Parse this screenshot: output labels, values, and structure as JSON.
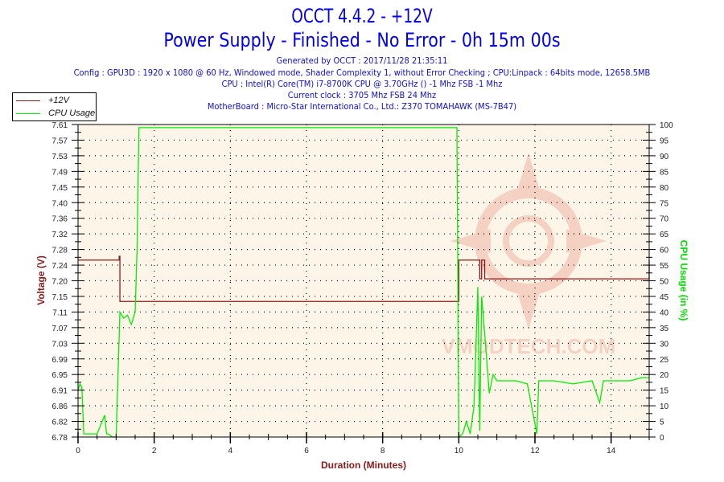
{
  "header": {
    "title": "OCCT 4.4.2 - +12V",
    "subtitle": "Power Supply - Finished - No Error - 0h 15m 00s",
    "generated": "Generated by OCCT : 2017/11/28 21:35:11",
    "config": "Config : GPU3D : 1920 x 1080 @ 60 Hz, Windowed mode, Shader Complexity 1, without Error Checking ; CPU:Linpack : 64bits mode, 12658.5MB",
    "cpu": "CPU : Intel(R) Core(TM) i7-8700K CPU @ 3.70GHz () -1 Mhz FSB -1 Mhz",
    "clock": "Current clock : 3705 Mhz FSB 24 Mhz",
    "motherboard": "MotherBoard : Micro-Star International Co., Ltd.: Z370 TOMAHAWK (MS-7B47)"
  },
  "legend": {
    "items": [
      {
        "label": "+12V",
        "color": "#8b1a1a"
      },
      {
        "label": "CPU Usage",
        "color": "#00ee00"
      }
    ]
  },
  "axes": {
    "xlabel": "Duration (Minutes)",
    "ylabel_left": "Voltage (V)",
    "ylabel_right": "CPU Usage (in %)"
  },
  "watermark": "VMODTECH.COM",
  "colors": {
    "plot_bg": "#fdf6e8",
    "voltage": "#8b1a1a",
    "cpu": "#00ee00",
    "axis_label_left": "#8b1a1a",
    "axis_label_right": "#00dd00",
    "title": "#0000ee"
  },
  "chart_data": {
    "type": "line",
    "title": "OCCT 4.4.2 - +12V",
    "xlabel": "Duration (Minutes)",
    "xlim": [
      0,
      15
    ],
    "x_ticks": [
      0,
      2,
      4,
      6,
      8,
      10,
      12,
      14
    ],
    "y_left": {
      "label": "Voltage (V)",
      "ylim": [
        6.78,
        7.61
      ],
      "ticks": [
        6.78,
        6.82,
        6.86,
        6.91,
        6.95,
        6.99,
        7.03,
        7.07,
        7.11,
        7.15,
        7.2,
        7.24,
        7.28,
        7.32,
        7.36,
        7.4,
        7.45,
        7.49,
        7.53,
        7.57,
        7.61
      ]
    },
    "y_right": {
      "label": "CPU Usage (in %)",
      "ylim": [
        0,
        100
      ],
      "ticks": [
        0,
        5,
        10,
        15,
        20,
        25,
        30,
        35,
        40,
        45,
        50,
        55,
        60,
        65,
        70,
        75,
        80,
        85,
        90,
        95,
        100
      ]
    },
    "grid": true,
    "legend_position": "top-left",
    "series": [
      {
        "name": "+12V",
        "axis": "left",
        "x": [
          0,
          1.05,
          1.08,
          1.1,
          9.95,
          9.98,
          10.0,
          10.05,
          10.5,
          10.55,
          10.6,
          10.62,
          10.68,
          15
        ],
        "y": [
          7.25,
          7.25,
          7.26,
          7.14,
          7.14,
          7.14,
          7.25,
          7.25,
          7.25,
          7.2,
          7.25,
          7.25,
          7.2,
          7.25
        ]
      },
      {
        "name": "CPU Usage",
        "axis": "right",
        "x": [
          0,
          0.05,
          0.1,
          0.15,
          0.2,
          0.3,
          0.5,
          0.7,
          0.75,
          0.8,
          0.9,
          1.0,
          1.05,
          1.1,
          1.15,
          1.2,
          1.3,
          1.4,
          1.5,
          1.55,
          1.6,
          9.9,
          9.95,
          10.0,
          10.1,
          10.2,
          10.3,
          10.4,
          10.5,
          10.55,
          10.6,
          10.7,
          10.8,
          10.9,
          11.0,
          11.1,
          11.2,
          11.5,
          11.8,
          12.05,
          12.1,
          12.2,
          12.5,
          13.0,
          13.5,
          13.7,
          13.8,
          14.0,
          14.3,
          14.5,
          14.8,
          15.0
        ],
        "y": [
          15,
          17,
          16,
          1,
          1,
          1,
          1,
          7,
          1,
          1,
          0,
          0,
          20,
          40,
          39,
          38,
          39,
          36,
          40,
          60,
          99,
          99,
          99,
          0,
          1,
          5,
          1,
          10,
          48,
          2,
          45,
          30,
          14,
          20,
          18,
          18,
          18,
          18,
          17,
          1,
          18,
          18,
          18,
          17,
          18,
          11,
          18,
          18,
          18,
          18,
          19,
          19
        ]
      }
    ]
  }
}
